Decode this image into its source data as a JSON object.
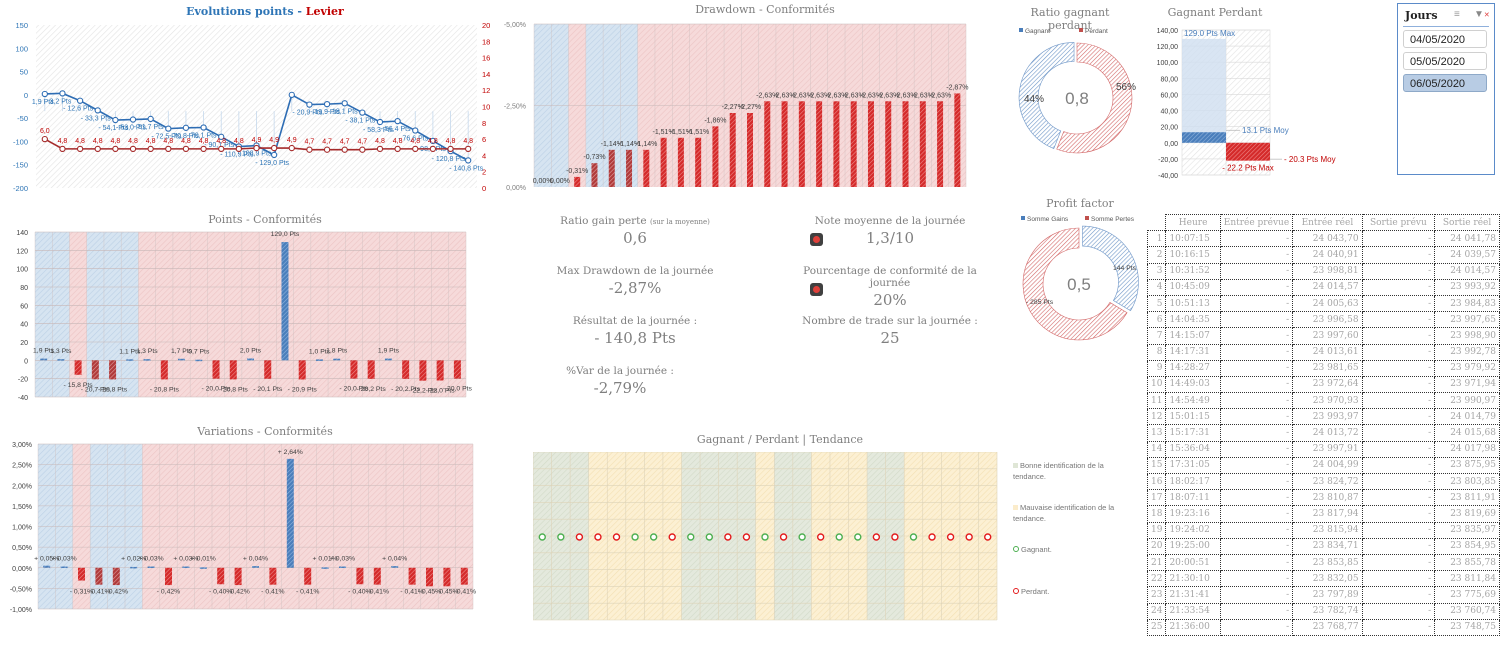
{
  "colors": {
    "blue": "#4a7ebb",
    "red": "#c0302b",
    "bright_red": "#e31a1c",
    "green": "#4caf50",
    "blue_band": "#d6e4f1",
    "red_band": "#f4d4d4",
    "green_band": "#dfe6d6",
    "yellow_band": "#fbeccb"
  },
  "trade_count": 25,
  "conformity": [
    "C",
    "C",
    "N",
    "C",
    "C",
    "C",
    "N",
    "N",
    "N",
    "N",
    "N",
    "N",
    "N",
    "N",
    "N",
    "N",
    "N",
    "N",
    "N",
    "N",
    "N",
    "N",
    "N",
    "N",
    "N"
  ],
  "kpis": {
    "ratio_gain_perte": {
      "label": "Ratio gain perte",
      "note": "(sur la moyenne)",
      "value": "0,6"
    },
    "max_drawdown": {
      "label": "Max Drawdown de la journée",
      "value": "-2,87%"
    },
    "resultat": {
      "label": "Résultat de la journée :",
      "value": "- 140,8 Pts"
    },
    "var": {
      "label": "%Var de la journée :",
      "value": "-2,79%"
    },
    "note_moyenne": {
      "label": "Note moyenne de la journée",
      "value": "1,3/10",
      "status": "red"
    },
    "conformite": {
      "label": "Pourcentage de conformité de la journée",
      "value": "20%",
      "status": "red"
    },
    "nb_trades": {
      "label": "Nombre de trade sur la journée :",
      "value": "25"
    }
  },
  "slicer": {
    "title": "Jours",
    "items": [
      {
        "label": "04/05/2020",
        "selected": false
      },
      {
        "label": "05/05/2020",
        "selected": false
      },
      {
        "label": "06/05/2020",
        "selected": true
      }
    ]
  },
  "tendance_legend": {
    "good": "Bonne identification de la tendance.",
    "bad": "Mauvaise identification de la tendance.",
    "win": "Gagnant.",
    "lose": "Perdant."
  },
  "table": {
    "headers": [
      "Heure",
      "Entrée prévue",
      "Entrée réel",
      "Sortie prévu",
      "Sortie réel"
    ],
    "rows": [
      [
        "1",
        "10:07:15",
        "-",
        "24 043,70",
        "-",
        "24 041,78"
      ],
      [
        "2",
        "10:16:15",
        "-",
        "24 040,91",
        "-",
        "24 039,57"
      ],
      [
        "3",
        "10:31:52",
        "-",
        "23 998,81",
        "-",
        "24 014,57"
      ],
      [
        "4",
        "10:45:09",
        "-",
        "24 014,57",
        "-",
        "23 993,92"
      ],
      [
        "5",
        "10:51:13",
        "-",
        "24 005,63",
        "-",
        "23 984,83"
      ],
      [
        "6",
        "14:04:35",
        "-",
        "23 996,58",
        "-",
        "23 997,65"
      ],
      [
        "7",
        "14:15:07",
        "-",
        "23 997,60",
        "-",
        "23 998,90"
      ],
      [
        "8",
        "14:17:31",
        "-",
        "24 013,61",
        "-",
        "23 992,78"
      ],
      [
        "9",
        "14:28:27",
        "-",
        "23 981,65",
        "-",
        "23 979,92"
      ],
      [
        "10",
        "14:49:03",
        "-",
        "23 972,64",
        "-",
        "23 971,94"
      ],
      [
        "11",
        "14:54:49",
        "-",
        "23 970,93",
        "-",
        "23 990,97"
      ],
      [
        "12",
        "15:01:15",
        "-",
        "23 993,97",
        "-",
        "24 014,79"
      ],
      [
        "13",
        "15:17:31",
        "-",
        "24 013,72",
        "-",
        "24 015,68"
      ],
      [
        "14",
        "15:36:04",
        "-",
        "23 997,91",
        "-",
        "24 017,98"
      ],
      [
        "15",
        "17:31:05",
        "-",
        "24 004,99",
        "-",
        "23 875,95"
      ],
      [
        "16",
        "18:02:17",
        "-",
        "23 824,72",
        "-",
        "23 803,85"
      ],
      [
        "17",
        "18:07:11",
        "-",
        "23 810,87",
        "-",
        "23 811,91"
      ],
      [
        "18",
        "19:23:16",
        "-",
        "23 817,94",
        "-",
        "23 819,69"
      ],
      [
        "19",
        "19:24:02",
        "-",
        "23 815,94",
        "-",
        "23 835,97"
      ],
      [
        "20",
        "19:25:00",
        "-",
        "23 834,71",
        "-",
        "23 854,95"
      ],
      [
        "21",
        "20:00:51",
        "-",
        "23 853,85",
        "-",
        "23 855,78"
      ],
      [
        "22",
        "21:30:10",
        "-",
        "23 832,05",
        "-",
        "23 811,84"
      ],
      [
        "23",
        "21:31:41",
        "-",
        "23 797,89",
        "-",
        "23 775,69"
      ],
      [
        "24",
        "21:33:54",
        "-",
        "23 782,74",
        "-",
        "23 760,74"
      ],
      [
        "25",
        "21:36:00",
        "-",
        "23 768,77",
        "-",
        "23 748,75"
      ]
    ]
  },
  "chart_data": [
    {
      "id": "evolution",
      "type": "line",
      "title": "Evolutions points",
      "title_sep": " - ",
      "title2": "Levier",
      "ylim": [
        -200,
        150
      ],
      "yticks": [
        150,
        100,
        50,
        0,
        -50,
        -100,
        -150,
        -200
      ],
      "y2lim": [
        0,
        20
      ],
      "y2ticks": [
        20,
        18,
        16,
        14,
        12,
        10,
        8,
        6,
        4,
        2,
        0
      ],
      "series": [
        {
          "name": "Points cumulés",
          "axis": "left",
          "values": [
            1.9,
            3.2,
            -12.6,
            -33.3,
            -54.1,
            -53.0,
            -51.7,
            -72.5,
            -70.8,
            -70.1,
            -90.1,
            -110.9,
            -108.9,
            -129.0,
            0.0,
            -20.9,
            -19.9,
            -18.1,
            -38.1,
            -58.3,
            -56.4,
            -76.6,
            -98.8,
            -120.8,
            -140.8
          ],
          "labels": [
            "1,9 Pts",
            "3,2 Pts",
            "- 12,6 Pts",
            "- 33,3 Pts",
            "- 54,1 Pts",
            "- 53,0 Pts",
            "- 51,7 Pts",
            "- 72,5 Pts",
            "- 70,8 Pts",
            "- 70,1 Pts",
            "- 90,1 Pts",
            "- 110,9 Pts",
            "- 108,9 Pts",
            "- 129,0 Pts",
            "",
            "- 20,9 Pts",
            "- 19,9 Pts",
            "- 18,1 Pts",
            "- 38,1 Pts",
            "- 58,3 Pts",
            "- 56,4 Pts",
            "- 76,6 Pts",
            "- 98,8 Pts",
            "- 120,8 Pts",
            "- 140,8 Pts"
          ]
        },
        {
          "name": "Levier",
          "axis": "right",
          "values": [
            6.0,
            4.8,
            4.8,
            4.8,
            4.8,
            4.8,
            4.8,
            4.8,
            4.8,
            4.8,
            4.8,
            4.8,
            4.9,
            4.9,
            4.9,
            4.7,
            4.7,
            4.7,
            4.7,
            4.8,
            4.8,
            4.8,
            4.8,
            4.8,
            4.8
          ],
          "labels": [
            "6,0",
            "4,8",
            "4,8",
            "4,8",
            "4,8",
            "4,8",
            "4,8",
            "4,8",
            "4,8",
            "4,8",
            "4,8",
            "4,8",
            "4,9",
            "4,9",
            "4,9",
            "4,7",
            "4,7",
            "4,7",
            "4,7",
            "4,8",
            "4,8",
            "4,8",
            "4,8",
            "4,8",
            "4,8"
          ]
        }
      ]
    },
    {
      "id": "drawdown",
      "type": "bar",
      "title": "Drawdown - Conformités",
      "ylim": [
        0,
        -5
      ],
      "yticks": [
        "-5,00%",
        "-2,50%",
        "0,00%"
      ],
      "values": [
        0,
        0,
        -0.31,
        -0.73,
        -1.14,
        -1.14,
        -1.14,
        -1.51,
        -1.51,
        -1.51,
        -1.86,
        -2.27,
        -2.27,
        -2.63,
        -2.63,
        -2.63,
        -2.63,
        -2.63,
        -2.63,
        -2.63,
        -2.63,
        -2.63,
        -2.63,
        -2.63,
        -2.87
      ],
      "labels": [
        "0,00%",
        "0,00%",
        "-0,31%",
        "-0,73%",
        "-1,14%",
        "-1,14%",
        "-1,14%",
        "-1,51%",
        "-1,51%",
        "-1,51%",
        "-1,86%",
        "-2,27%",
        "-2,27%",
        "-2,63%",
        "-2,63%",
        "-2,63%",
        "-2,63%",
        "-2,63%",
        "-2,63%",
        "-2,63%",
        "-2,63%",
        "-2,63%",
        "-2,63%",
        "-2,63%",
        "-2,87%"
      ]
    },
    {
      "id": "points",
      "type": "bar",
      "title": "Points - Conformités",
      "ylim": [
        -40,
        140
      ],
      "yticks": [
        140,
        120,
        100,
        80,
        60,
        40,
        20,
        0,
        -20,
        -40
      ],
      "values": [
        1.9,
        1.3,
        -15.8,
        -20.7,
        -20.8,
        1.1,
        1.3,
        -20.8,
        1.7,
        0.7,
        -20.0,
        -20.8,
        2.0,
        -20.1,
        129.0,
        -20.9,
        1.0,
        1.8,
        -20.0,
        -20.2,
        1.9,
        -20.2,
        -22.2,
        -22.0,
        -20.0
      ],
      "labels": [
        "1,9 Pts",
        "1,3 Pts",
        "- 15,8 Pts",
        "- 20,7 Pts",
        "- 20,8 Pts",
        "1,1 Pts",
        "1,3 Pts",
        "- 20,8 Pts",
        "1,7 Pts",
        "0,7 Pts",
        "- 20,0 Pts",
        "- 20,8 Pts",
        "2,0 Pts",
        "- 20,1 Pts",
        "129,0 Pts",
        "- 20,9 Pts",
        "1,0 Pts",
        "1,8 Pts",
        "- 20,0 Pts",
        "- 20,2 Pts",
        "1,9 Pts",
        "- 20,2 Pts",
        "- 22,2 Pts",
        "- 22,0 Pts",
        "- 20,0 Pts"
      ]
    },
    {
      "id": "variations",
      "type": "bar",
      "title": "Variations - Conformités",
      "ylim": [
        -1,
        3
      ],
      "yticks": [
        "3,00%",
        "2,50%",
        "2,00%",
        "1,50%",
        "1,00%",
        "0,50%",
        "0,00%",
        "-0,50%",
        "-1,00%"
      ],
      "values": [
        0.05,
        0.03,
        -0.31,
        -0.41,
        -0.42,
        0.02,
        0.03,
        -0.42,
        0.03,
        0.01,
        -0.4,
        -0.42,
        0.04,
        -0.41,
        2.64,
        -0.41,
        0.01,
        0.03,
        -0.4,
        -0.41,
        0.04,
        -0.41,
        -0.45,
        -0.45,
        -0.41
      ],
      "labels": [
        "+ 0,05%",
        "+ 0,03%",
        "- 0,31%",
        "- 0,41%",
        "- 0,42%",
        "+ 0,02%",
        "+ 0,03%",
        "- 0,42%",
        "+ 0,03%",
        "+ 0,01%",
        "- 0,40%",
        "- 0,42%",
        "+ 0,04%",
        "- 0,41%",
        "+ 2,64%",
        "- 0,41%",
        "+ 0,01%",
        "+ 0,03%",
        "- 0,40%",
        "- 0,41%",
        "+ 0,04%",
        "- 0,41%",
        "- 0,45%",
        "- 0,45%",
        "- 0,41%"
      ]
    },
    {
      "id": "ratio",
      "type": "pie",
      "title": "Ratio gagnant perdant",
      "center_label": "0,8",
      "legend": [
        "Gagnant",
        "Perdant"
      ],
      "values": [
        44,
        56
      ],
      "labels": [
        "44%",
        "56%"
      ]
    },
    {
      "id": "gagnant_perdant",
      "type": "bar",
      "title": "Gagnant Perdant",
      "ylim": [
        -40,
        140
      ],
      "yticks": [
        "140,00",
        "120,00",
        "100,00",
        "80,00",
        "60,00",
        "40,00",
        "20,00",
        "0,00",
        "-20,00",
        "-40,00"
      ],
      "series": [
        {
          "name": "Gagnant",
          "max": 129.0,
          "avg": 13.1,
          "max_label": "129.0 Pts Max",
          "avg_label": "13.1 Pts Moy"
        },
        {
          "name": "Perdant",
          "max": -22.2,
          "avg": -20.3,
          "max_label": "- 22.2 Pts Max",
          "avg_label": "- 20.3 Pts Moy"
        }
      ]
    },
    {
      "id": "profit_factor",
      "type": "pie",
      "title": "Profit factor",
      "center_label": "0,5",
      "legend": [
        "Somme Gains",
        "Somme Pertes"
      ],
      "values": [
        144,
        285
      ],
      "labels": [
        "144 Pts",
        "- 285 Pts"
      ]
    },
    {
      "id": "tendance",
      "type": "scatter",
      "title": "Gagnant / Perdant | Tendance",
      "outcomes": [
        "W",
        "W",
        "L",
        "L",
        "L",
        "W",
        "W",
        "L",
        "W",
        "W",
        "L",
        "L",
        "W",
        "L",
        "W",
        "L",
        "W",
        "W",
        "L",
        "L",
        "W",
        "L",
        "L",
        "L",
        "L"
      ],
      "tendance": [
        "G",
        "G",
        "G",
        "B",
        "B",
        "B",
        "B",
        "B",
        "G",
        "G",
        "G",
        "G",
        "B",
        "G",
        "G",
        "B",
        "B",
        "B",
        "G",
        "G",
        "B",
        "B",
        "B",
        "B",
        "B"
      ]
    }
  ]
}
